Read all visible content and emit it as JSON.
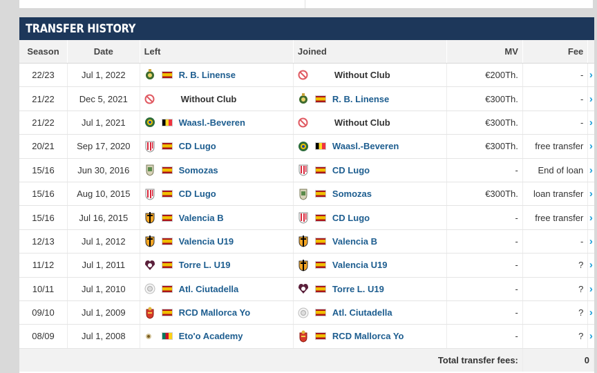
{
  "header": {
    "title": "TRANSFER HISTORY"
  },
  "columns": {
    "season": "Season",
    "date": "Date",
    "left": "Left",
    "joined": "Joined",
    "mv": "MV",
    "fee": "Fee"
  },
  "rows": [
    {
      "season": "22/23",
      "date": "Jul 1, 2022",
      "left": "R. B. Linense",
      "left_flag": "es",
      "left_logo": "linense",
      "joined": "Without Club",
      "joined_flag": "none",
      "joined_logo": "without",
      "mv": "€200Th.",
      "fee": "-"
    },
    {
      "season": "21/22",
      "date": "Dec 5, 2021",
      "left": "Without Club",
      "left_flag": "none",
      "left_logo": "without",
      "joined": "R. B. Linense",
      "joined_flag": "es",
      "joined_logo": "linense",
      "mv": "€300Th.",
      "fee": "-"
    },
    {
      "season": "21/22",
      "date": "Jul 1, 2021",
      "left": "Waasl.-Beveren",
      "left_flag": "be",
      "left_logo": "beveren",
      "joined": "Without Club",
      "joined_flag": "none",
      "joined_logo": "without",
      "mv": "€300Th.",
      "fee": "-"
    },
    {
      "season": "20/21",
      "date": "Sep 17, 2020",
      "left": "CD Lugo",
      "left_flag": "es",
      "left_logo": "lugo",
      "joined": "Waasl.-Beveren",
      "joined_flag": "be",
      "joined_logo": "beveren",
      "mv": "€300Th.",
      "fee": "free transfer"
    },
    {
      "season": "15/16",
      "date": "Jun 30, 2016",
      "left": "Somozas",
      "left_flag": "es",
      "left_logo": "somozas",
      "joined": "CD Lugo",
      "joined_flag": "es",
      "joined_logo": "lugo",
      "mv": "-",
      "fee": "End of loan"
    },
    {
      "season": "15/16",
      "date": "Aug 10, 2015",
      "left": "CD Lugo",
      "left_flag": "es",
      "left_logo": "lugo",
      "joined": "Somozas",
      "joined_flag": "es",
      "joined_logo": "somozas",
      "mv": "€300Th.",
      "fee": "loan transfer"
    },
    {
      "season": "15/16",
      "date": "Jul 16, 2015",
      "left": "Valencia B",
      "left_flag": "es",
      "left_logo": "valencia",
      "joined": "CD Lugo",
      "joined_flag": "es",
      "joined_logo": "lugo",
      "mv": "-",
      "fee": "free transfer"
    },
    {
      "season": "12/13",
      "date": "Jul 1, 2012",
      "left": "Valencia U19",
      "left_flag": "es",
      "left_logo": "valencia",
      "joined": "Valencia B",
      "joined_flag": "es",
      "joined_logo": "valencia",
      "mv": "-",
      "fee": "-"
    },
    {
      "season": "11/12",
      "date": "Jul 1, 2011",
      "left": "Torre L. U19",
      "left_flag": "es",
      "left_logo": "torre",
      "joined": "Valencia U19",
      "joined_flag": "es",
      "joined_logo": "valencia",
      "mv": "-",
      "fee": "?"
    },
    {
      "season": "10/11",
      "date": "Jul 1, 2010",
      "left": "Atl. Ciutadella",
      "left_flag": "es",
      "left_logo": "ciutadella",
      "joined": "Torre L. U19",
      "joined_flag": "es",
      "joined_logo": "torre",
      "mv": "-",
      "fee": "?"
    },
    {
      "season": "09/10",
      "date": "Jul 1, 2009",
      "left": "RCD Mallorca Yo",
      "left_flag": "es",
      "left_logo": "mallorca",
      "joined": "Atl. Ciutadella",
      "joined_flag": "es",
      "joined_logo": "ciutadella",
      "mv": "-",
      "fee": "?"
    },
    {
      "season": "08/09",
      "date": "Jul 1, 2008",
      "left": "Eto'o Academy",
      "left_flag": "cm",
      "left_logo": "etoo",
      "joined": "RCD Mallorca Yo",
      "joined_flag": "es",
      "joined_logo": "mallorca",
      "mv": "-",
      "fee": "?"
    }
  ],
  "footer": {
    "label": "Total transfer fees:",
    "value": "0"
  },
  "colors": {
    "header_bg": "#1d375a",
    "link": "#1d5d8f",
    "arrow": "#1a9fd8"
  },
  "icons": {
    "row_arrow": "chevron-right-icon"
  }
}
